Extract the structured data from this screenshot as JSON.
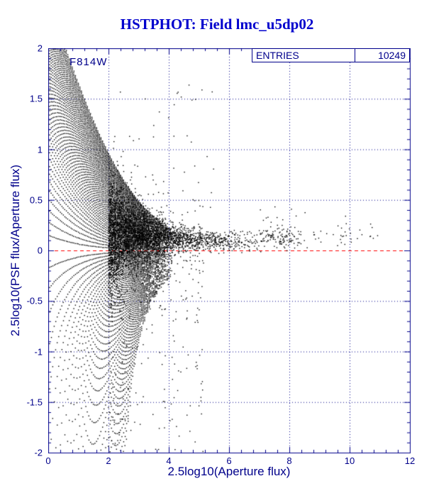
{
  "chart_data": {
    "type": "scatter",
    "title": "HSTPHOT: Field lmc_u5dp02",
    "xlabel": "2.5log10(Aperture flux)",
    "ylabel": "2.5log10(PSF flux/Aperture flux)",
    "xlim": [
      0,
      12
    ],
    "ylim": [
      -2,
      2
    ],
    "x_ticks": [
      "0",
      "2",
      "4",
      "6",
      "8",
      "10",
      "12"
    ],
    "y_ticks": [
      "2",
      "1.5",
      "1",
      "0.5",
      "0",
      "-0.5",
      "-1",
      "-1.5",
      "-2"
    ],
    "grid": {
      "show": true,
      "style": "dotted"
    },
    "legend_position": "none",
    "annotations": {
      "filter": "F814W"
    },
    "stats_box": {
      "label": "ENTRIES",
      "value": "10249"
    },
    "reference_line": {
      "y": 0,
      "style": "dashed",
      "color": "#ff0000"
    },
    "colors": {
      "axis": "#00008b",
      "title": "#0000cd",
      "points": "#000000",
      "background": "#ffffff"
    },
    "entries": 10249,
    "point_generator": {
      "seed": 20231104,
      "description": "~10249 PSF-vs-aperture photometry points: quantization fan of dotted curves converging to y=0 by x~3, dense band settling at y=+0.1 for x>2, negative spray to y=-2 for x=2..5, sparse tail of points near y=0.14 out to x=10.8",
      "fan": {
        "unit": 0.15,
        "k_max": 60,
        "x_step": 0.05,
        "x_max": 4.2
      },
      "cloud": {
        "n": 3800,
        "x_origin": 2.0,
        "x_scale": 1.25,
        "y_near": 0.17,
        "y_far": 0.09,
        "sigma_near": 0.3,
        "sigma_far": 0.045
      },
      "negative_tail": {
        "n": 280
      },
      "high_outliers": {
        "n": 70
      },
      "right_sparse": {
        "n": 130,
        "y_mean": 0.14,
        "y_sigma": 0.05
      }
    }
  }
}
